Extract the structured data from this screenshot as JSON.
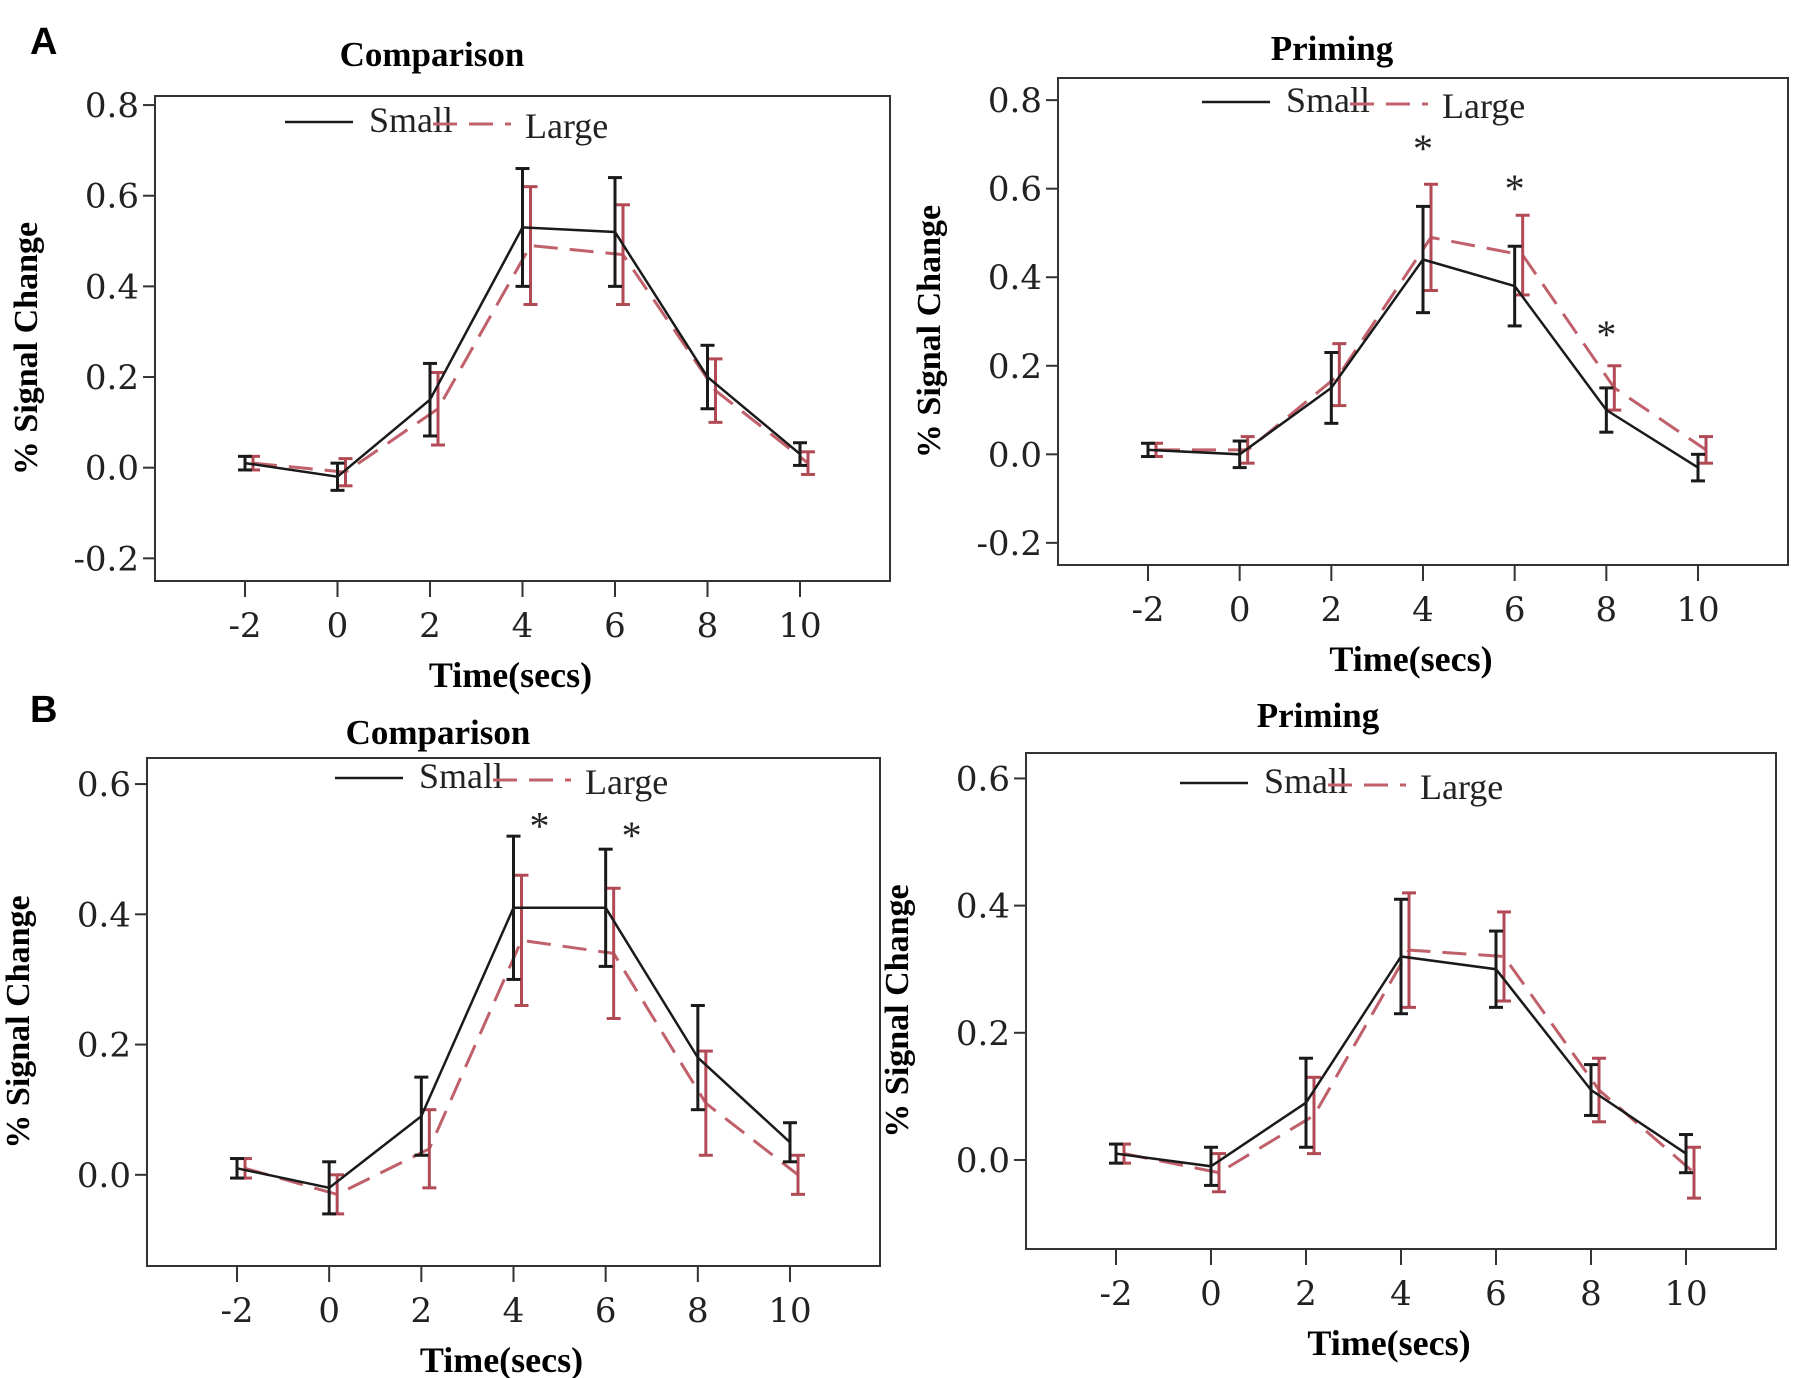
{
  "panel_labels": [
    "A",
    "B"
  ],
  "colors": {
    "small": "#1a1a1a",
    "large": "#c0606a",
    "large_err": "#b24a55",
    "frame": "#333333"
  },
  "chart_data": [
    {
      "type": "line",
      "panel": "A",
      "title": "Comparison",
      "xlabel": "Time(secs)",
      "ylabel": "% Signal Change",
      "x": [
        -2,
        0,
        2,
        4,
        6,
        8,
        10
      ],
      "xtick_labels": [
        "-2",
        "0",
        "2",
        "4",
        "6",
        "8",
        "10"
      ],
      "ylim": [
        -0.25,
        0.82
      ],
      "yticks": [
        -0.2,
        0.0,
        0.2,
        0.4,
        0.6,
        0.8
      ],
      "ytick_labels": [
        "-0.2",
        "0.0",
        "0.2",
        "0.4",
        "0.6",
        "0.8"
      ],
      "legend": {
        "small": "Small",
        "large": "Large"
      },
      "series": [
        {
          "name": "Small",
          "style": "solid",
          "values": [
            0.01,
            -0.02,
            0.15,
            0.53,
            0.52,
            0.2,
            0.03
          ],
          "errors": [
            0.015,
            0.03,
            0.08,
            0.13,
            0.12,
            0.07,
            0.025
          ]
        },
        {
          "name": "Large",
          "style": "dashed",
          "values": [
            0.01,
            -0.01,
            0.13,
            0.49,
            0.47,
            0.17,
            0.01
          ],
          "errors": [
            0.015,
            0.03,
            0.08,
            0.13,
            0.11,
            0.07,
            0.025
          ]
        }
      ],
      "significance": []
    },
    {
      "type": "line",
      "panel": "A",
      "title": "Priming",
      "xlabel": "Time(secs)",
      "ylabel": "% Signal Change",
      "x": [
        -2,
        0,
        2,
        4,
        6,
        8,
        10
      ],
      "xtick_labels": [
        "-2",
        "0",
        "2",
        "4",
        "6",
        "8",
        "10"
      ],
      "ylim": [
        -0.25,
        0.85
      ],
      "yticks": [
        -0.2,
        0.0,
        0.2,
        0.4,
        0.6,
        0.8
      ],
      "ytick_labels": [
        "-0.2",
        "0.0",
        "0.2",
        "0.4",
        "0.6",
        "0.8"
      ],
      "legend": {
        "small": "Small",
        "large": "Large"
      },
      "series": [
        {
          "name": "Small",
          "style": "solid",
          "values": [
            0.01,
            0.0,
            0.15,
            0.44,
            0.38,
            0.1,
            -0.03
          ],
          "errors": [
            0.015,
            0.03,
            0.08,
            0.12,
            0.09,
            0.05,
            0.03
          ]
        },
        {
          "name": "Large",
          "style": "dashed",
          "values": [
            0.01,
            0.01,
            0.18,
            0.49,
            0.45,
            0.15,
            0.01
          ],
          "errors": [
            0.015,
            0.03,
            0.07,
            0.12,
            0.09,
            0.05,
            0.03
          ]
        }
      ],
      "significance": [
        {
          "x": 4,
          "y": 0.66,
          "label": "*"
        },
        {
          "x": 6,
          "y": 0.57,
          "label": "*"
        },
        {
          "x": 8,
          "y": 0.24,
          "label": "*"
        }
      ]
    },
    {
      "type": "line",
      "panel": "B",
      "title": "Comparison",
      "xlabel": "Time(secs)",
      "ylabel": "% Signal Change",
      "x": [
        -2,
        0,
        2,
        4,
        6,
        8,
        10
      ],
      "xtick_labels": [
        "-2",
        "0",
        "2",
        "4",
        "6",
        "8",
        "10"
      ],
      "ylim": [
        -0.14,
        0.64
      ],
      "yticks": [
        0.0,
        0.2,
        0.4,
        0.6
      ],
      "ytick_labels": [
        "0.0",
        "0.2",
        "0.4",
        "0.6"
      ],
      "legend": {
        "small": "Small",
        "large": "Large"
      },
      "series": [
        {
          "name": "Small",
          "style": "solid",
          "values": [
            0.01,
            -0.02,
            0.09,
            0.41,
            0.41,
            0.18,
            0.05
          ],
          "errors": [
            0.015,
            0.04,
            0.06,
            0.11,
            0.09,
            0.08,
            0.03
          ]
        },
        {
          "name": "Large",
          "style": "dashed",
          "values": [
            0.01,
            -0.03,
            0.04,
            0.36,
            0.34,
            0.11,
            0.0
          ],
          "errors": [
            0.015,
            0.03,
            0.06,
            0.1,
            0.1,
            0.08,
            0.03
          ]
        }
      ],
      "significance": [
        {
          "x": 4,
          "y": 0.515,
          "label": "*"
        },
        {
          "x": 6,
          "y": 0.5,
          "label": "*"
        }
      ]
    },
    {
      "type": "line",
      "panel": "B",
      "title": "Priming",
      "xlabel": "Time(secs)",
      "ylabel": "% Signal Change",
      "x": [
        -2,
        0,
        2,
        4,
        6,
        8,
        10
      ],
      "xtick_labels": [
        "-2",
        "0",
        "2",
        "4",
        "6",
        "8",
        "10"
      ],
      "ylim": [
        -0.14,
        0.64
      ],
      "yticks": [
        0.0,
        0.2,
        0.4,
        0.6
      ],
      "ytick_labels": [
        "0.0",
        "0.2",
        "0.4",
        "0.6"
      ],
      "legend": {
        "small": "Small",
        "large": "Large"
      },
      "series": [
        {
          "name": "Small",
          "style": "solid",
          "values": [
            0.01,
            -0.01,
            0.09,
            0.32,
            0.3,
            0.11,
            0.01
          ],
          "errors": [
            0.015,
            0.03,
            0.07,
            0.09,
            0.06,
            0.04,
            0.03
          ]
        },
        {
          "name": "Large",
          "style": "dashed",
          "values": [
            0.01,
            -0.02,
            0.07,
            0.33,
            0.32,
            0.11,
            -0.02
          ],
          "errors": [
            0.015,
            0.03,
            0.06,
            0.09,
            0.07,
            0.05,
            0.04
          ]
        }
      ],
      "significance": []
    }
  ]
}
